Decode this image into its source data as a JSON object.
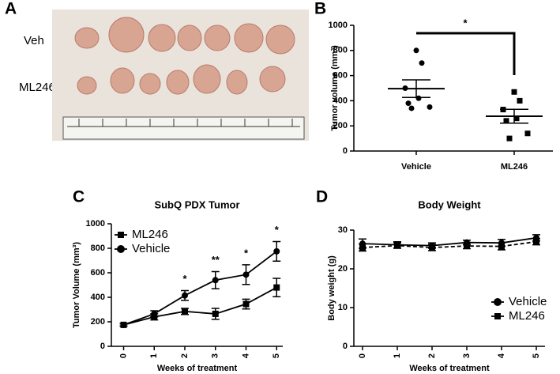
{
  "photo": {
    "panel": "A",
    "row_labels": [
      "Veh",
      "ML246"
    ]
  },
  "chart_data": [
    {
      "panel": "B",
      "type": "dot",
      "y_label": "Tumor volume (mm³)",
      "categories": [
        "Vehicle",
        "ML246"
      ],
      "points": [
        [
          800,
          700,
          500,
          420,
          380,
          350,
          340
        ],
        [
          470,
          400,
          330,
          260,
          240,
          140,
          100
        ]
      ],
      "means": [
        496,
        277
      ],
      "sem": [
        70,
        55
      ],
      "color": "#000000",
      "ylim": [
        0,
        1000
      ],
      "yticks": [
        0,
        200,
        400,
        600,
        800,
        1000
      ],
      "annotation": "*"
    },
    {
      "panel": "C",
      "type": "line",
      "title": "SubQ PDX Tumor",
      "x_label": "Weeks of treatment",
      "y_label": "Tumor Volume (mm³)",
      "x": [
        0,
        1,
        2,
        3,
        4,
        5
      ],
      "series": [
        {
          "name": "ML246",
          "color": "#000000",
          "marker": "square",
          "dashed": false,
          "values": [
            175,
            240,
            285,
            265,
            345,
            480
          ],
          "errors": [
            10,
            25,
            25,
            45,
            40,
            75
          ]
        },
        {
          "name": "Vehicle",
          "color": "#000000",
          "marker": "circle",
          "dashed": false,
          "values": [
            175,
            265,
            415,
            540,
            585,
            775
          ],
          "errors": [
            10,
            25,
            40,
            70,
            80,
            80
          ]
        }
      ],
      "annotations": [
        {
          "x": 2,
          "text": "*"
        },
        {
          "x": 3,
          "text": "**"
        },
        {
          "x": 4,
          "text": "*"
        },
        {
          "x": 5,
          "text": "*"
        }
      ],
      "xlim": [
        -0.4,
        5.2
      ],
      "xticks": [
        0,
        1,
        2,
        3,
        4,
        5
      ],
      "ylim": [
        0,
        1000
      ],
      "yticks": [
        0,
        200,
        400,
        600,
        800,
        1000
      ],
      "legend": "upper left"
    },
    {
      "panel": "D",
      "type": "line",
      "title": "Body Weight",
      "x_label": "Weeks of treatment",
      "y_label": "Body weight (g)",
      "x": [
        0,
        1,
        2,
        3,
        4,
        5
      ],
      "series": [
        {
          "name": "Vehicle",
          "color": "#000000",
          "marker": "circle",
          "dashed": false,
          "values": [
            26.5,
            26.2,
            26.0,
            26.8,
            26.7,
            28.0
          ],
          "errors": [
            1.2,
            0.8,
            0.7,
            0.6,
            0.9,
            0.8
          ]
        },
        {
          "name": "ML246",
          "color": "#000000",
          "marker": "square",
          "dashed": true,
          "values": [
            25.5,
            26.0,
            25.5,
            25.9,
            25.8,
            27.0
          ],
          "errors": [
            0.9,
            0.7,
            0.8,
            0.7,
            0.9,
            0.8
          ]
        }
      ],
      "xlim": [
        -0.25,
        5.25
      ],
      "xticks": [
        0,
        1,
        2,
        3,
        4,
        5
      ],
      "ylim": [
        0,
        30
      ],
      "yticks": [
        0,
        10,
        20,
        30
      ],
      "legend": "lower right"
    }
  ]
}
